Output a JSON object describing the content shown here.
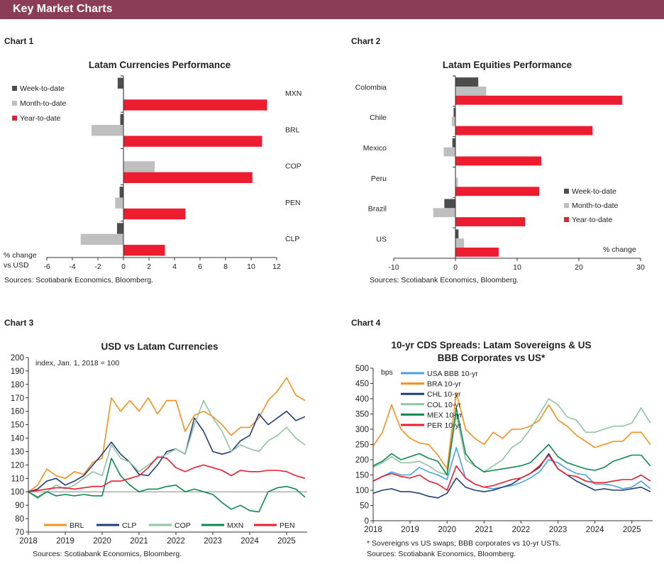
{
  "header": {
    "title": "Key Market Charts",
    "color": "#8b3d57"
  },
  "chart_labels": [
    "Chart 1",
    "Chart 2",
    "Chart 3",
    "Chart 4"
  ],
  "colors": {
    "week": "#4d4d4d",
    "month": "#bfbfbf",
    "ytd": "#ed1c2e",
    "BRL": "#f7901e",
    "CLP": "#1f3f7a",
    "COP": "#8fc4a0",
    "MXN": "#0e8a4f",
    "PEN": "#ed1c2e",
    "USA": "#4aa3dc",
    "BRA": "#f7901e",
    "CHL": "#1f3f7a",
    "COL": "#8fc4a0",
    "MEX": "#0e8a4f",
    "PER": "#ed1c2e"
  },
  "chart_data": [
    {
      "type": "bar",
      "orientation": "horizontal",
      "title": "Latam Currencies Performance",
      "xlabel": "% change vs USD",
      "xlim": [
        -6,
        12
      ],
      "ticks": [
        "-6",
        "-4",
        "-2",
        "0",
        "2",
        "4",
        "6",
        "8",
        "10",
        "12"
      ],
      "categories": [
        "MXN",
        "BRL",
        "COP",
        "PEN",
        "CLP"
      ],
      "series": [
        {
          "name": "Week-to-date",
          "values": [
            -0.45,
            -0.25,
            0.0,
            -0.3,
            -0.5
          ]
        },
        {
          "name": "Month-to-date",
          "values": [
            0.05,
            -2.5,
            2.45,
            -0.65,
            -3.35
          ]
        },
        {
          "name": "Year-to-date",
          "values": [
            11.25,
            10.85,
            10.1,
            4.85,
            3.25
          ]
        }
      ],
      "legend": "top-left",
      "source": "Sources:  Scotiabank  Economics,  Bloomberg."
    },
    {
      "type": "bar",
      "orientation": "horizontal",
      "title": "Latam Equities Performance",
      "xlabel": "% change",
      "xlim": [
        -10,
        30
      ],
      "ticks": [
        "-10",
        "0",
        "10",
        "20",
        "30"
      ],
      "categories": [
        "Colombia",
        "Chile",
        "Mexico",
        "Peru",
        "Brazil",
        "US"
      ],
      "series": [
        {
          "name": "Week-to-date",
          "values": [
            3.7,
            -0.3,
            -0.5,
            0.05,
            -1.8,
            0.5
          ]
        },
        {
          "name": "Month-to-date",
          "values": [
            5.0,
            -0.6,
            -1.9,
            0.4,
            -3.6,
            1.4
          ]
        },
        {
          "name": "Year-to-date",
          "values": [
            27.0,
            22.2,
            13.9,
            13.6,
            11.3,
            7.0
          ]
        }
      ],
      "legend": "bottom-right",
      "source": "Sources:  Scotiabank  Economics,  Bloomberg."
    },
    {
      "type": "line",
      "title": "USD vs Latam Currencies",
      "ylabel": "index,  Jan. 1, 2018 = 100",
      "ylim": [
        70,
        200
      ],
      "yticks": [
        "70",
        "80",
        "90",
        "100",
        "110",
        "120",
        "130",
        "140",
        "150",
        "160",
        "170",
        "180",
        "190",
        "200"
      ],
      "xticks": [
        "2018",
        "2019",
        "2020",
        "2021",
        "2022",
        "2023",
        "2024",
        "2025"
      ],
      "reference_line": 100,
      "legend": "bottom",
      "x": [
        "2018-01",
        "2018-04",
        "2018-07",
        "2018-10",
        "2019-01",
        "2019-04",
        "2019-07",
        "2019-10",
        "2020-01",
        "2020-04",
        "2020-07",
        "2020-10",
        "2021-01",
        "2021-04",
        "2021-07",
        "2021-10",
        "2022-01",
        "2022-04",
        "2022-07",
        "2022-10",
        "2023-01",
        "2023-04",
        "2023-07",
        "2023-10",
        "2024-01",
        "2024-04",
        "2024-07",
        "2024-10",
        "2025-01",
        "2025-04",
        "2025-07"
      ],
      "series": [
        {
          "name": "BRL",
          "values": [
            100,
            105,
            117,
            112,
            110,
            115,
            113,
            122,
            125,
            170,
            160,
            168,
            160,
            170,
            158,
            168,
            168,
            145,
            157,
            160,
            156,
            150,
            142,
            148,
            148,
            155,
            168,
            175,
            185,
            172,
            168
          ]
        },
        {
          "name": "CLP",
          "values": [
            100,
            102,
            108,
            110,
            105,
            108,
            112,
            120,
            128,
            137,
            128,
            122,
            113,
            112,
            120,
            130,
            132,
            128,
            155,
            145,
            130,
            128,
            130,
            138,
            142,
            158,
            150,
            155,
            160,
            153,
            156
          ]
        },
        {
          "name": "COP",
          "values": [
            100,
            95,
            100,
            105,
            102,
            105,
            110,
            115,
            112,
            135,
            125,
            122,
            115,
            120,
            125,
            128,
            132,
            128,
            150,
            168,
            155,
            145,
            130,
            135,
            132,
            130,
            138,
            142,
            148,
            140,
            135
          ]
        },
        {
          "name": "MXN",
          "values": [
            100,
            96,
            100,
            97,
            98,
            97,
            98,
            97,
            97,
            125,
            112,
            105,
            100,
            102,
            102,
            104,
            105,
            100,
            102,
            100,
            98,
            92,
            87,
            90,
            86,
            85,
            100,
            103,
            104,
            102,
            96
          ]
        },
        {
          "name": "PEN",
          "values": [
            100,
            101,
            102,
            103,
            103,
            102,
            103,
            104,
            104,
            108,
            108,
            110,
            112,
            118,
            126,
            125,
            118,
            115,
            118,
            120,
            118,
            116,
            112,
            116,
            115,
            115,
            116,
            116,
            115,
            112,
            110
          ]
        }
      ],
      "source": "Sources:  Scotiabank  Economics,  Bloomberg."
    },
    {
      "type": "line",
      "title": "10-yr CDS Spreads: Latam Sovereigns & US",
      "title2": "BBB Corporates vs US*",
      "ylabel": "bps",
      "ylim": [
        0,
        500
      ],
      "yticks": [
        "0",
        "50",
        "100",
        "150",
        "200",
        "250",
        "300",
        "350",
        "400",
        "450",
        "500"
      ],
      "xticks": [
        "2018",
        "2019",
        "2020",
        "2021",
        "2022",
        "2023",
        "2024",
        "2025"
      ],
      "legend": "top-left",
      "x": [
        "2018-01",
        "2018-04",
        "2018-07",
        "2018-10",
        "2019-01",
        "2019-04",
        "2019-07",
        "2019-10",
        "2020-01",
        "2020-04",
        "2020-07",
        "2020-10",
        "2021-01",
        "2021-04",
        "2021-07",
        "2021-10",
        "2022-01",
        "2022-04",
        "2022-07",
        "2022-10",
        "2023-01",
        "2023-04",
        "2023-07",
        "2023-10",
        "2024-01",
        "2024-04",
        "2024-07",
        "2024-10",
        "2025-01",
        "2025-04",
        "2025-07"
      ],
      "series": [
        {
          "name": "USA BBB 10-yr",
          "key": "USA",
          "values": [
            130,
            145,
            160,
            150,
            150,
            175,
            160,
            150,
            135,
            240,
            140,
            120,
            110,
            105,
            110,
            115,
            125,
            140,
            160,
            200,
            190,
            170,
            155,
            150,
            120,
            120,
            115,
            105,
            110,
            130,
            105
          ]
        },
        {
          "name": "BRA 10-yr",
          "key": "BRA",
          "values": [
            245,
            290,
            380,
            300,
            270,
            255,
            250,
            215,
            170,
            420,
            300,
            270,
            250,
            290,
            270,
            300,
            300,
            310,
            330,
            380,
            330,
            310,
            280,
            260,
            240,
            250,
            260,
            260,
            290,
            290,
            250
          ]
        },
        {
          "name": "CHL 10-yr",
          "key": "CHL",
          "values": [
            90,
            100,
            105,
            95,
            95,
            90,
            80,
            75,
            90,
            140,
            110,
            100,
            95,
            100,
            110,
            120,
            140,
            155,
            175,
            220,
            170,
            150,
            130,
            115,
            100,
            105,
            100,
            100,
            105,
            110,
            95
          ]
        },
        {
          "name": "COL 10-yr",
          "key": "COL",
          "values": [
            175,
            190,
            210,
            190,
            190,
            195,
            180,
            160,
            150,
            350,
            200,
            180,
            160,
            180,
            200,
            240,
            260,
            300,
            350,
            400,
            380,
            340,
            330,
            290,
            290,
            300,
            310,
            310,
            320,
            370,
            320
          ]
        },
        {
          "name": "MEX 10-yr",
          "key": "MEX",
          "values": [
            180,
            195,
            220,
            200,
            210,
            220,
            205,
            195,
            150,
            370,
            220,
            180,
            160,
            165,
            170,
            175,
            180,
            190,
            220,
            250,
            210,
            190,
            180,
            170,
            165,
            175,
            195,
            205,
            215,
            215,
            180
          ]
        },
        {
          "name": "PER 10-yr",
          "key": "PER",
          "values": [
            130,
            145,
            155,
            145,
            140,
            150,
            130,
            120,
            100,
            180,
            140,
            120,
            110,
            115,
            125,
            135,
            140,
            155,
            180,
            215,
            170,
            150,
            145,
            130,
            125,
            125,
            130,
            135,
            135,
            150,
            130
          ]
        }
      ],
      "footnote": "* Sovereigns vs US swaps; BBB corporates  vs 10-yr USTs.",
      "source": "Sources:  Scotiabank  Economics,  Bloomberg."
    }
  ]
}
